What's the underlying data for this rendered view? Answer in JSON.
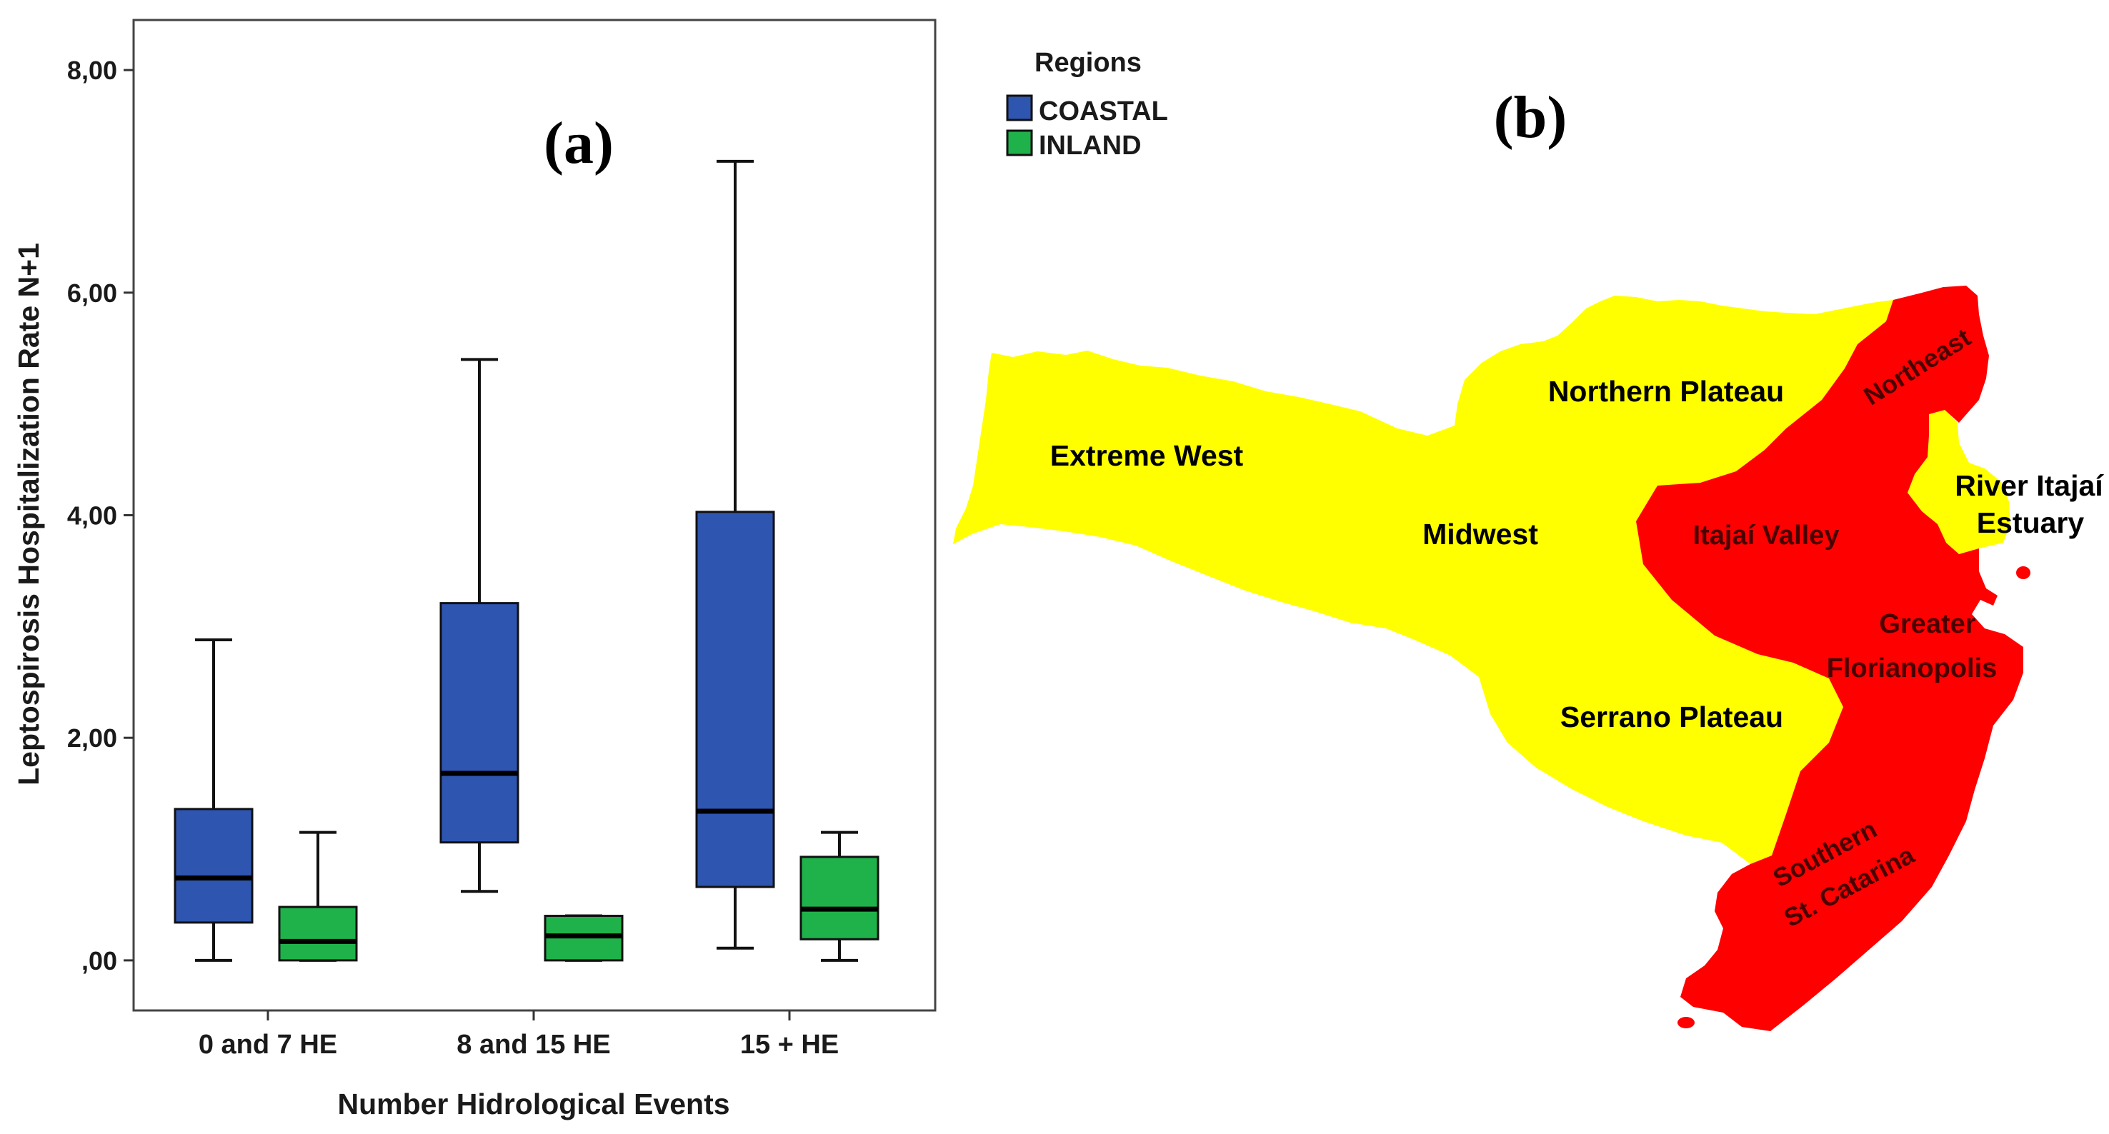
{
  "colors": {
    "coastal": "#2e55b0",
    "inland": "#1fb24a",
    "yellow_region": "#ffff00",
    "red_region": "#ff0000"
  },
  "panel_a": {
    "label": "(a)"
  },
  "panel_b": {
    "label": "(b)"
  },
  "legend": {
    "title": "Regions",
    "entries": [
      "COASTAL",
      "INLAND"
    ]
  },
  "chart_data": {
    "type": "boxplot",
    "title": "",
    "xlabel": "Number Hidrological Events",
    "ylabel": "Leptospirosis Hospitalization Rate N+1",
    "categories": [
      "0 and 7 HE",
      "8 and 15 HE",
      "15 + HE"
    ],
    "ylim": [
      -0.45,
      8.45
    ],
    "yticks": [
      0,
      2,
      4,
      6,
      8
    ],
    "ytick_labels": [
      ",00",
      "2,00",
      "4,00",
      "6,00",
      "8,00"
    ],
    "series": [
      {
        "name": "COASTAL",
        "boxes": [
          {
            "min": 0.0,
            "q1": 0.34,
            "median": 0.74,
            "q3": 1.36,
            "max": 2.88
          },
          {
            "min": 0.62,
            "q1": 1.06,
            "median": 1.68,
            "q3": 3.21,
            "max": 5.4
          },
          {
            "min": 0.11,
            "q1": 0.66,
            "median": 1.34,
            "q3": 4.03,
            "max": 7.18
          }
        ]
      },
      {
        "name": "INLAND",
        "boxes": [
          {
            "min": 0.0,
            "q1": 0.0,
            "median": 0.17,
            "q3": 0.48,
            "max": 1.15
          },
          {
            "min": 0.0,
            "q1": 0.0,
            "median": 0.22,
            "q3": 0.4,
            "max": 0.4
          },
          {
            "min": 0.0,
            "q1": 0.19,
            "median": 0.46,
            "q3": 0.93,
            "max": 1.15
          }
        ]
      }
    ]
  },
  "map": {
    "regions": {
      "extreme_west": "Extreme West",
      "northern_plateau": "Northern Plateau",
      "midwest": "Midwest",
      "serrano_plateau": "Serrano Plateau",
      "northeast": "Northeast",
      "itajai_valley": "Itajaí Valley",
      "river_estuary_line1": "River Itajaí",
      "river_estuary_line2": "Estuary",
      "greater_line1": "Greater",
      "greater_line2": "Florianopolis",
      "southern_line1": "Southern",
      "southern_line2": "St. Catarina"
    }
  }
}
